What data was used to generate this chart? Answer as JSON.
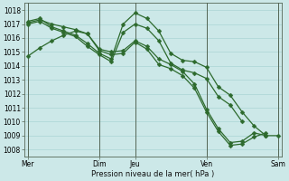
{
  "bg_color": "#cce8e8",
  "grid_color": "#aad4d4",
  "line_color": "#2d6a2d",
  "marker_color": "#2d6a2d",
  "xlabel": "Pression niveau de la mer( hPa )",
  "ylim": [
    1007.5,
    1018.5
  ],
  "yticks": [
    1008,
    1009,
    1010,
    1011,
    1012,
    1013,
    1014,
    1015,
    1016,
    1017,
    1018
  ],
  "xtick_labels": [
    "Mer",
    "Dim",
    "Jeu",
    "Ven",
    "Sam"
  ],
  "xtick_positions": [
    0,
    6,
    9,
    15,
    21
  ],
  "vlines": [
    0,
    6,
    9,
    15,
    21
  ],
  "line1_x": [
    0,
    1,
    2,
    3,
    4,
    5,
    6,
    7,
    8,
    9,
    10,
    11,
    12,
    13,
    14,
    15,
    16,
    17,
    18,
    19,
    20,
    21
  ],
  "line1_y": [
    1014.7,
    1015.3,
    1015.8,
    1016.2,
    1016.5,
    1016.3,
    1015.2,
    1015.0,
    1015.1,
    1015.8,
    1015.4,
    1014.5,
    1014.1,
    1013.6,
    1012.7,
    1010.9,
    1009.5,
    1008.5,
    1008.6,
    1009.2,
    1009.0,
    1009.0
  ],
  "line2_x": [
    0,
    1,
    2,
    3,
    4,
    5,
    6,
    7,
    8,
    9,
    10,
    11,
    12,
    13,
    14,
    15,
    16,
    17,
    18,
    19,
    20
  ],
  "line2_y": [
    1017.1,
    1017.3,
    1017.0,
    1016.8,
    1016.6,
    1016.3,
    1015.1,
    1014.8,
    1014.9,
    1015.7,
    1015.2,
    1014.1,
    1013.8,
    1013.3,
    1012.4,
    1010.7,
    1009.3,
    1008.3,
    1008.4,
    1008.9,
    1009.2
  ],
  "line3_x": [
    0,
    1,
    2,
    3,
    4,
    5,
    6,
    7,
    8,
    9,
    10,
    11,
    12,
    13,
    14,
    15,
    16,
    17,
    18,
    19,
    20
  ],
  "line3_y": [
    1017.2,
    1017.4,
    1016.8,
    1016.5,
    1016.2,
    1015.6,
    1014.9,
    1014.5,
    1017.0,
    1017.8,
    1017.4,
    1016.5,
    1014.9,
    1014.4,
    1014.3,
    1013.9,
    1012.5,
    1011.9,
    1010.7,
    1009.7,
    1009.0
  ],
  "line4_x": [
    0,
    1,
    2,
    3,
    4,
    5,
    6,
    7,
    8,
    9,
    10,
    11,
    12,
    13,
    14,
    15,
    16,
    17,
    18
  ],
  "line4_y": [
    1017.0,
    1017.2,
    1016.7,
    1016.4,
    1016.1,
    1015.4,
    1014.8,
    1014.3,
    1016.4,
    1017.0,
    1016.7,
    1015.8,
    1014.2,
    1013.7,
    1013.5,
    1013.1,
    1011.8,
    1011.2,
    1010.0
  ]
}
